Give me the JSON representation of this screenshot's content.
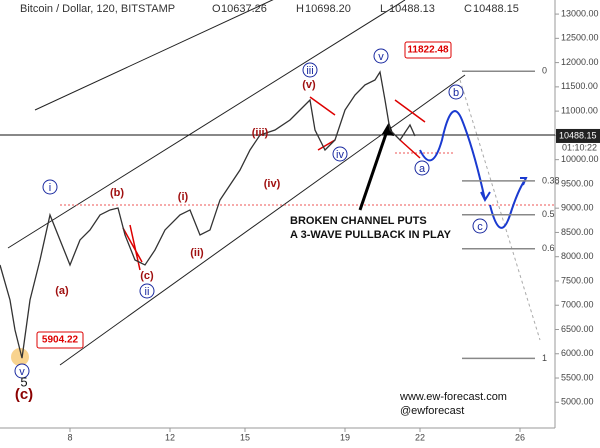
{
  "chart_data": {
    "type": "line",
    "title": "Bitcoin / Dollar, 120, BITSTAMP",
    "ohlc": [
      {
        "name": "O",
        "value": 10637.26,
        "label": "10637.26"
      },
      {
        "name": "H",
        "value": 10698.2,
        "label": "10698.20"
      },
      {
        "name": "L",
        "value": 10488.13,
        "label": "10488.13"
      },
      {
        "name": "C",
        "value": 10488.15,
        "label": "10488.15"
      }
    ],
    "x": [
      5.2,
      5.6,
      5.8,
      6.08,
      6.4,
      6.8,
      7.2,
      7.6,
      8.0,
      8.4,
      8.8,
      9.2,
      9.6,
      9.92,
      10.2,
      10.6,
      11.0,
      11.4,
      11.8,
      12.4,
      12.8,
      13.2,
      13.6,
      14.0,
      14.4,
      14.8,
      15.2,
      15.6,
      16.2,
      16.8,
      17.2,
      17.6,
      17.8,
      18.2,
      18.6,
      19.0,
      19.4,
      19.8,
      20.2,
      20.4,
      20.6,
      20.8,
      21.2,
      21.6,
      21.8
    ],
    "series": [
      {
        "name": "BTCUSD",
        "color": "#333333",
        "values": [
          7830,
          7108,
          6490,
          5910,
          7108,
          7932,
          8860,
          8345,
          7830,
          8345,
          8551,
          8860,
          8963,
          9004,
          8448,
          7932,
          7830,
          8139,
          8551,
          8860,
          8963,
          8448,
          8551,
          9169,
          9478,
          9787,
          10199,
          10508,
          10611,
          10817,
          11023,
          11229,
          10611,
          10199,
          10405,
          11023,
          11332,
          11539,
          11642,
          11806,
          11229,
          10611,
          10405,
          10714,
          10488
        ]
      }
    ],
    "xlim": [
      5.2,
      27.4
    ],
    "ylim": [
      4470,
      13290
    ],
    "xticks": [
      8,
      12,
      15,
      19,
      22,
      26
    ],
    "yticks": [
      {
        "value": 5000,
        "label": "5000.00"
      },
      {
        "value": 5500,
        "label": "5500.00"
      },
      {
        "value": 6000,
        "label": "6000.00"
      },
      {
        "value": 6500,
        "label": "6500.00"
      },
      {
        "value": 7000,
        "label": "7000.00"
      },
      {
        "value": 7500,
        "label": "7500.00"
      },
      {
        "value": 8000,
        "label": "8000.00"
      },
      {
        "value": 8500,
        "label": "8500.00"
      },
      {
        "value": 9000,
        "label": "9000.00"
      },
      {
        "value": 9500,
        "label": "9500.00"
      },
      {
        "value": 10000,
        "label": "10000.00"
      },
      {
        "value": 10500,
        "label": "10500.00"
      },
      {
        "value": 11000,
        "label": "11000.00"
      },
      {
        "value": 11500,
        "label": "11500.00"
      },
      {
        "value": 12000,
        "label": "12000.00"
      },
      {
        "value": 12500,
        "label": "12500.00"
      },
      {
        "value": 13000,
        "label": "13000.00"
      }
    ],
    "last_price": {
      "value": 10488.15,
      "label": "10488.15"
    },
    "countdown": "01:10:22",
    "high": {
      "value": 11822.48,
      "label": "11822.48"
    },
    "low": {
      "value": 5904.22,
      "label": "5904.22"
    },
    "fib_levels": [
      0,
      {
        "value": 0.382,
        "label": "0.38"
      },
      0.5,
      {
        "value": 0.618,
        "label": "0.6"
      },
      1
    ],
    "annotations": [
      {
        "text": "i",
        "style": "blue"
      },
      {
        "text": "(b)",
        "style": "red"
      },
      {
        "text": "(i)",
        "style": "red"
      },
      {
        "text": "(a)",
        "style": "red"
      },
      {
        "text": "(c)",
        "style": "red"
      },
      {
        "text": "ii",
        "style": "blue"
      },
      {
        "text": "(ii)",
        "style": "red"
      },
      {
        "text": "(iii)",
        "style": "red"
      },
      {
        "text": "(iv)",
        "style": "red"
      },
      {
        "text": "iii",
        "style": "blue"
      },
      {
        "text": "(v)",
        "style": "red"
      },
      {
        "text": "iv",
        "style": "blue"
      },
      {
        "text": "v",
        "style": "blue"
      },
      {
        "text": "a",
        "style": "blue"
      },
      {
        "text": "b",
        "style": "blue"
      },
      {
        "text": "c",
        "style": "blue"
      },
      {
        "text": "v",
        "style": "blue"
      },
      {
        "text": "5",
        "style": "black"
      },
      {
        "text": "(c)",
        "style": "dark-red-large"
      }
    ],
    "note": [
      "BROKEN CHANNEL PUTS",
      "A 3-WAVE PULLBACK IN PLAY"
    ],
    "website": "www.ew-forecast.com",
    "handle": "@ewforecast"
  }
}
